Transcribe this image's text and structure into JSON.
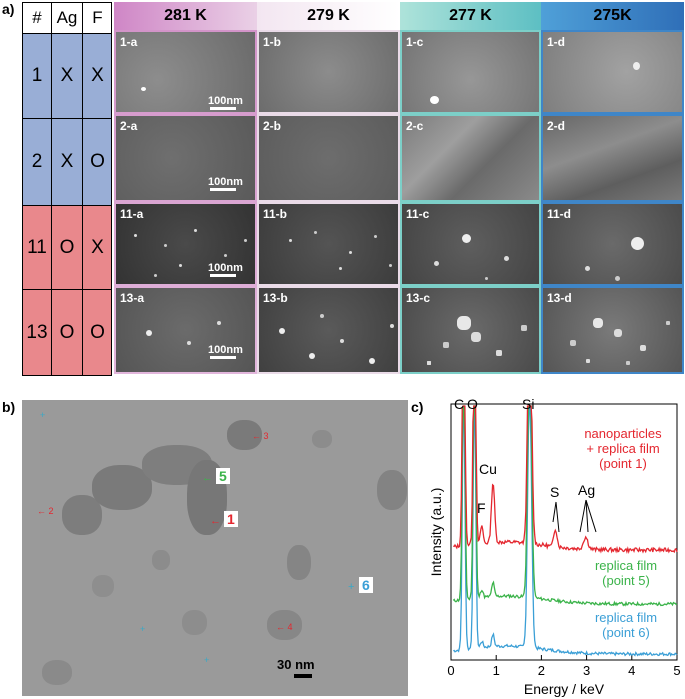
{
  "panel_a": {
    "letter": "a)",
    "table": {
      "headers": [
        "#",
        "Ag",
        "F"
      ],
      "rows": [
        {
          "num": "1",
          "ag": "X",
          "f": "X",
          "color": "#99aed6"
        },
        {
          "num": "2",
          "ag": "X",
          "f": "O",
          "color": "#99aed6"
        },
        {
          "num": "11",
          "ag": "O",
          "f": "X",
          "color": "#e9888c"
        },
        {
          "num": "13",
          "ag": "O",
          "f": "O",
          "color": "#e9888c"
        }
      ]
    },
    "temperatures": [
      "281 K",
      "279 K",
      "277 K",
      "275K"
    ],
    "cells": [
      [
        "1-a",
        "1-b",
        "1-c",
        "1-d"
      ],
      [
        "2-a",
        "2-b",
        "2-c",
        "2-d"
      ],
      [
        "11-a",
        "11-b",
        "11-c",
        "11-d"
      ],
      [
        "13-a",
        "13-b",
        "13-c",
        "13-d"
      ]
    ],
    "scalebar_label": "100nm"
  },
  "panel_b": {
    "letter": "b)",
    "points_red": [
      "3",
      "2",
      "1",
      "4"
    ],
    "boxed": {
      "five": "5",
      "one": "1",
      "six": "6"
    },
    "scalebar_label": "30 nm"
  },
  "panel_c": {
    "letter": "c)",
    "peaks": {
      "c": "C",
      "o": "O",
      "si": "Si",
      "cu": "Cu",
      "f": "F",
      "s": "S",
      "ag": "Ag"
    },
    "legend": {
      "red_line1": "nanoparticles",
      "red_line2": "+ replica film",
      "red_line3": "(point 1)",
      "green_line1": "replica film",
      "green_line2": "(point 5)",
      "blue_line1": "replica film",
      "blue_line2": "(point 6)"
    },
    "xlabel": "Energy / keV",
    "ylabel": "Intensity (a.u.)",
    "xticks": [
      "0",
      "1",
      "2",
      "3",
      "4",
      "5"
    ],
    "colors": {
      "red": "#e4272f",
      "green": "#3bb34a",
      "blue": "#3b9fd6"
    }
  }
}
